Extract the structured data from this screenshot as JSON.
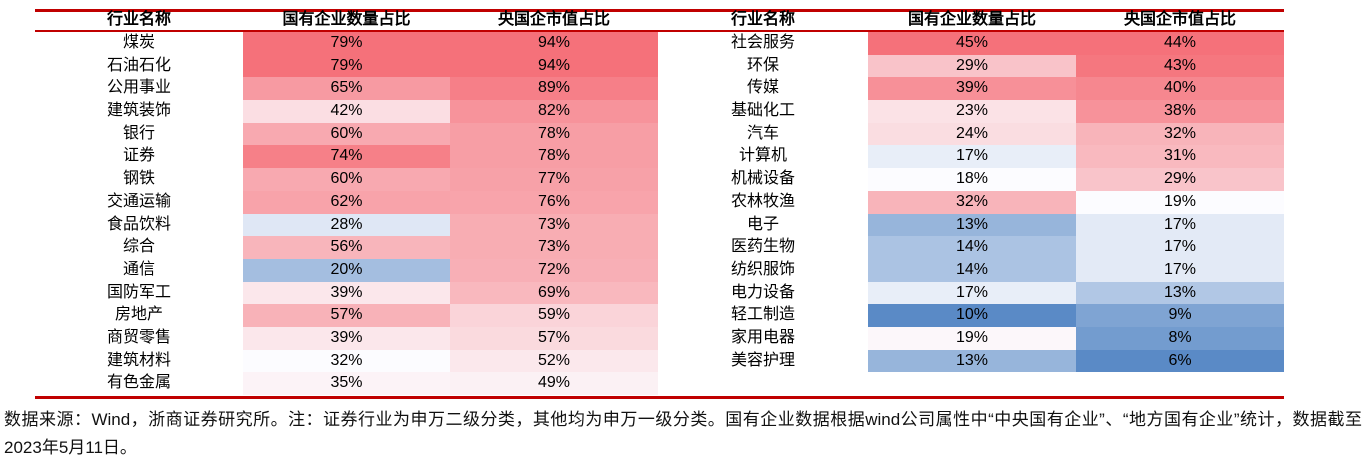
{
  "chart_data": {
    "type": "heatmap",
    "value_suffix": "%",
    "tables": [
      {
        "side": "left",
        "headers": [
          "行业名称",
          "国有企业数量占比",
          "央国企市值占比"
        ],
        "rows": [
          [
            "煤炭",
            79,
            94
          ],
          [
            "石油石化",
            79,
            94
          ],
          [
            "公用事业",
            65,
            89
          ],
          [
            "建筑装饰",
            42,
            82
          ],
          [
            "银行",
            60,
            78
          ],
          [
            "证券",
            74,
            78
          ],
          [
            "钢铁",
            60,
            77
          ],
          [
            "交通运输",
            62,
            76
          ],
          [
            "食品饮料",
            28,
            73
          ],
          [
            "综合",
            56,
            73
          ],
          [
            "通信",
            20,
            72
          ],
          [
            "国防军工",
            39,
            69
          ],
          [
            "房地产",
            57,
            59
          ],
          [
            "商贸零售",
            39,
            57
          ],
          [
            "建筑材料",
            32,
            52
          ],
          [
            "有色金属",
            35,
            49
          ]
        ],
        "scales": [
          {
            "min": 10,
            "mid": 32,
            "max": 79
          },
          {
            "min": 0,
            "mid": 45,
            "max": 94
          }
        ]
      },
      {
        "side": "right",
        "headers": [
          "行业名称",
          "国有企业数量占比",
          "央国企市值占比"
        ],
        "rows": [
          [
            "社会服务",
            45,
            44
          ],
          [
            "环保",
            29,
            43
          ],
          [
            "传媒",
            39,
            40
          ],
          [
            "基础化工",
            23,
            38
          ],
          [
            "汽车",
            24,
            32
          ],
          [
            "计算机",
            17,
            31
          ],
          [
            "机械设备",
            18,
            29
          ],
          [
            "农林牧渔",
            32,
            19
          ],
          [
            "电子",
            13,
            17
          ],
          [
            "医药生物",
            14,
            17
          ],
          [
            "纺织服饰",
            14,
            17
          ],
          [
            "电力设备",
            17,
            13
          ],
          [
            "轻工制造",
            10,
            9
          ],
          [
            "家用电器",
            19,
            8
          ],
          [
            "美容护理",
            13,
            6
          ]
        ],
        "scales": [
          {
            "min": 10,
            "mid": 18,
            "max": 45
          },
          {
            "min": 6,
            "mid": 19,
            "max": 44
          }
        ]
      }
    ],
    "colors": {
      "scale_low": "#5A8AC6",
      "scale_mid": "#FCFCFF",
      "scale_high": "#F5717A",
      "rule_line": "#C00000",
      "text": "#000000"
    },
    "legend_position": "none",
    "grid": false
  },
  "footer": {
    "note": "数据来源：Wind，浙商证券研究所。注：证券行业为申万二级分类，其他均为申万一级分类。国有企业数据根据wind公司属性中“中央国有企业”、“地方国有企业”统计，数据截至2023年5月11日。"
  }
}
